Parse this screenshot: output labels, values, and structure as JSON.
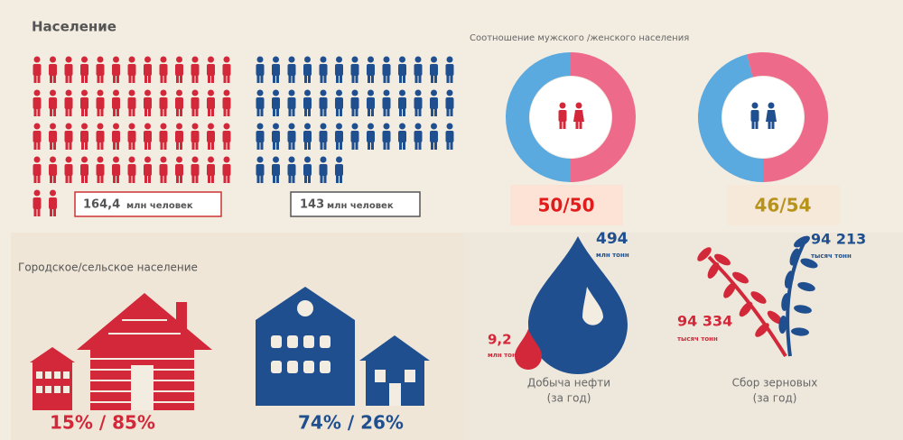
{
  "population": {
    "title": "Население",
    "female_value": "164,4",
    "female_unit": "млн человек",
    "male_value": "143",
    "male_unit": "млн человек"
  },
  "gender_ratio": {
    "title": "Соотношение мужского /женского населения",
    "charts": [
      {
        "label": "50/50",
        "values": [
          50,
          50
        ]
      },
      {
        "label": "46/54",
        "values": [
          46,
          54
        ]
      }
    ]
  },
  "urban_rural": {
    "title": "Городское/сельское население",
    "items": [
      {
        "label": "15% / 85%"
      },
      {
        "label": "74% / 26%"
      }
    ]
  },
  "oil": {
    "large_value": "494",
    "large_unit": "млн тонн",
    "small_value": "9,2",
    "small_unit": "млн тонн",
    "caption": [
      "Добыча нефти",
      "(за год)"
    ]
  },
  "grain": {
    "large_value": "94 213",
    "large_unit": "тысяч тонн",
    "small_value": "94 334",
    "small_unit": "тысяч тонн",
    "caption": [
      "Сбор зерновых",
      "(за год)"
    ]
  }
}
